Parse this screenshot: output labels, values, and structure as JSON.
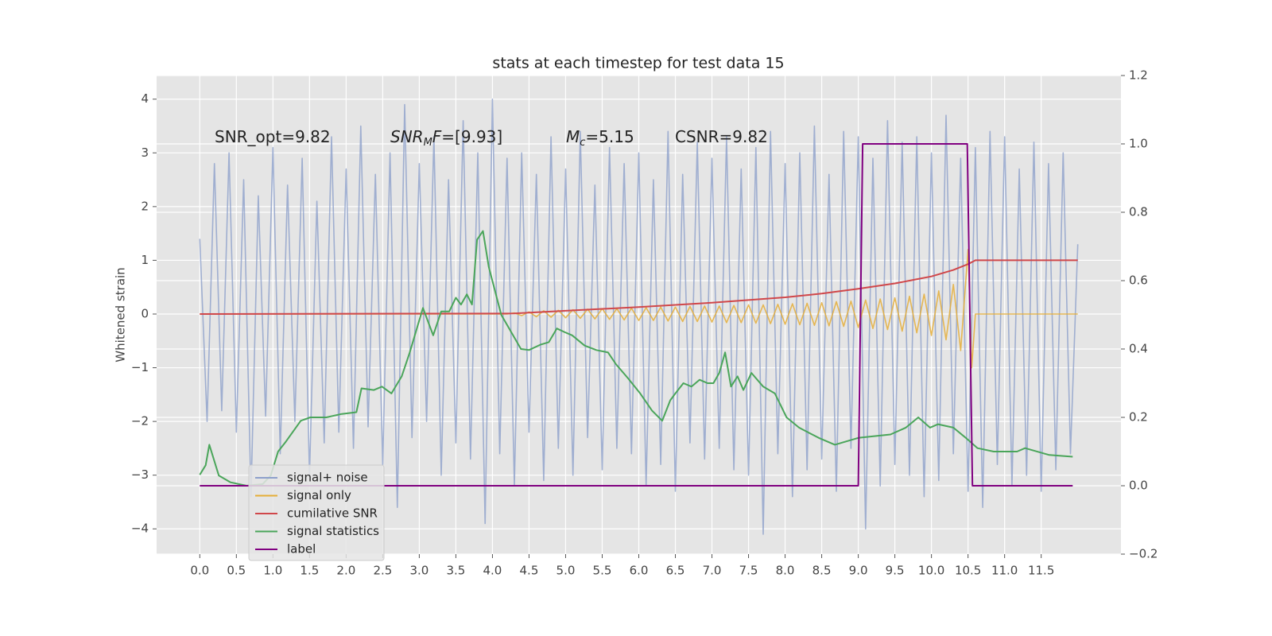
{
  "chart_data": {
    "type": "line",
    "title": "stats at each timestep for test data 15",
    "ylabel": "Whitened strain",
    "xlim": [
      -0.59,
      12.59
    ],
    "ylim": [
      -4.47,
      4.44
    ],
    "y2lim": [
      -0.2,
      1.2
    ],
    "xticks": [
      {
        "value": 0,
        "label": "0.0"
      },
      0.5,
      {
        "value": 1,
        "label": "1.0"
      },
      1.5,
      {
        "value": 2,
        "label": "2.0"
      },
      2.5,
      {
        "value": 3,
        "label": "3.0"
      },
      3.5,
      {
        "value": 4,
        "label": "4.0"
      },
      4.5,
      {
        "value": 5,
        "label": "5.0"
      },
      5.5,
      {
        "value": 6,
        "label": "6.0"
      },
      6.5,
      {
        "value": 7,
        "label": "7.0"
      },
      7.5,
      {
        "value": 8,
        "label": "8.0"
      },
      8.5,
      {
        "value": 9,
        "label": "9.0"
      },
      9.5,
      {
        "value": 10,
        "label": "10.0"
      },
      10.5,
      {
        "value": 11,
        "label": "11.0"
      },
      11.5
    ],
    "yticks": [
      {
        "value": -4,
        "label": "−4"
      },
      {
        "value": -3,
        "label": "−3"
      },
      {
        "value": -2,
        "label": "−2"
      },
      {
        "value": -1,
        "label": "−1"
      },
      0,
      1,
      2,
      3,
      4
    ],
    "y2ticks": [
      {
        "value": -0.2,
        "label": "−0.2"
      },
      {
        "value": 0,
        "label": "0.0"
      },
      0.2,
      0.4,
      0.6,
      0.8,
      {
        "value": 1,
        "label": "1.0"
      },
      1.2
    ],
    "grid": true,
    "legend_loc": "lower left",
    "annotations": [
      [
        {
          "text": "SNR_opt=9.82",
          "style": "normal"
        }
      ],
      [
        {
          "text": "SNR",
          "style": "italic"
        },
        {
          "text": "M",
          "style": "sub"
        },
        {
          "text": "F",
          "style": "italic"
        },
        {
          "text": "=[9.93]",
          "style": "normal"
        }
      ],
      [
        {
          "text": "M",
          "style": "italic"
        },
        {
          "text": "c",
          "style": "sub"
        },
        {
          "text": "=5.15",
          "style": "normal"
        }
      ],
      [
        {
          "text": "CSNR=9.82",
          "style": "normal"
        }
      ]
    ],
    "series": [
      {
        "name": "signal+ noise",
        "color": "#8da0cb",
        "axis": "y",
        "x": [
          0,
          0.1,
          0.2,
          0.3,
          0.4,
          0.5,
          0.6,
          0.7,
          0.8,
          0.9,
          1,
          1.1,
          1.2,
          1.3,
          1.4,
          1.5,
          1.6,
          1.7,
          1.8,
          1.9,
          2,
          2.1,
          2.2,
          2.3,
          2.4,
          2.5,
          2.6,
          2.7,
          2.8,
          2.9,
          3,
          3.1,
          3.2,
          3.3,
          3.4,
          3.5,
          3.6,
          3.7,
          3.8,
          3.9,
          4,
          4.1,
          4.2,
          4.3,
          4.4,
          4.5,
          4.6,
          4.7,
          4.8,
          4.9,
          5,
          5.1,
          5.2,
          5.3,
          5.4,
          5.5,
          5.6,
          5.7,
          5.8,
          5.9,
          6,
          6.1,
          6.2,
          6.3,
          6.4,
          6.5,
          6.6,
          6.7,
          6.8,
          6.9,
          7,
          7.1,
          7.2,
          7.3,
          7.4,
          7.5,
          7.6,
          7.7,
          7.8,
          7.9,
          8,
          8.1,
          8.2,
          8.3,
          8.4,
          8.5,
          8.6,
          8.7,
          8.8,
          8.9,
          9,
          9.1,
          9.2,
          9.3,
          9.4,
          9.5,
          9.6,
          9.7,
          9.8,
          9.9,
          10,
          10.1,
          10.2,
          10.3,
          10.4,
          10.5,
          10.6,
          10.7,
          10.8,
          10.9,
          11,
          11.1,
          11.2,
          11.3,
          11.4,
          11.5,
          11.6,
          11.7,
          11.8,
          11.9,
          12
        ],
        "values": [
          1.4,
          -2.0,
          2.8,
          -1.8,
          3.0,
          -2.2,
          2.5,
          -3.4,
          2.2,
          -1.9,
          3.1,
          -2.6,
          2.4,
          -2.0,
          2.9,
          -3.0,
          2.1,
          -2.4,
          3.3,
          -2.2,
          2.7,
          -2.5,
          3.5,
          -2.1,
          2.6,
          -2.8,
          3.0,
          -3.6,
          3.9,
          -2.3,
          2.8,
          -2.0,
          3.3,
          -3.0,
          2.5,
          -2.4,
          3.6,
          -2.7,
          3.0,
          -3.9,
          4.0,
          -2.6,
          2.9,
          -3.2,
          3.0,
          -2.2,
          2.6,
          -3.1,
          3.3,
          -2.5,
          2.7,
          -3.0,
          3.4,
          -2.3,
          2.4,
          -2.9,
          3.1,
          -2.5,
          2.8,
          -2.6,
          3.0,
          -3.2,
          2.5,
          -2.8,
          3.4,
          -3.3,
          2.6,
          -2.4,
          3.2,
          -2.7,
          2.9,
          -2.5,
          3.3,
          -2.9,
          2.7,
          -3.0,
          3.1,
          -4.1,
          3.4,
          -2.6,
          2.8,
          -3.4,
          3.0,
          -2.9,
          3.5,
          -2.7,
          2.6,
          -3.3,
          3.4,
          -2.5,
          3.3,
          -4.0,
          2.9,
          -3.2,
          3.6,
          -2.8,
          3.2,
          -3.0,
          3.3,
          -3.4,
          3.0,
          -3.1,
          3.7,
          -2.6,
          2.9,
          -3.3,
          3.1,
          -3.6,
          3.4,
          -2.8,
          3.3,
          -3.2,
          2.7,
          -3.0,
          3.2,
          -3.3,
          2.8,
          -2.9,
          3.0,
          -2.6,
          1.3
        ]
      },
      {
        "name": "signal only",
        "color": "#e5ae38",
        "axis": "y",
        "x": [
          0,
          4.2,
          4.3,
          4.4,
          4.5,
          4.6,
          4.7,
          4.8,
          4.9,
          5,
          5.1,
          5.2,
          5.3,
          5.4,
          5.5,
          5.6,
          5.7,
          5.8,
          5.9,
          6,
          6.1,
          6.2,
          6.3,
          6.4,
          6.5,
          6.6,
          6.7,
          6.8,
          6.9,
          7,
          7.1,
          7.2,
          7.3,
          7.4,
          7.5,
          7.6,
          7.7,
          7.8,
          7.9,
          8,
          8.1,
          8.2,
          8.3,
          8.4,
          8.5,
          8.6,
          8.7,
          8.8,
          8.9,
          9,
          9.1,
          9.2,
          9.3,
          9.4,
          9.5,
          9.6,
          9.7,
          9.8,
          9.9,
          10,
          10.1,
          10.2,
          10.3,
          10.4,
          10.5,
          10.55,
          10.6,
          12
        ],
        "values": [
          0,
          0,
          0.02,
          -0.03,
          0.04,
          -0.05,
          0.06,
          -0.06,
          0.07,
          -0.07,
          0.08,
          -0.08,
          0.09,
          -0.09,
          0.1,
          -0.1,
          0.1,
          -0.11,
          0.11,
          -0.12,
          0.12,
          -0.12,
          0.13,
          -0.13,
          0.13,
          -0.14,
          0.14,
          -0.14,
          0.15,
          -0.15,
          0.15,
          -0.16,
          0.16,
          -0.16,
          0.17,
          -0.17,
          0.17,
          -0.18,
          0.18,
          -0.19,
          0.19,
          -0.2,
          0.2,
          -0.21,
          0.21,
          -0.22,
          0.23,
          -0.23,
          0.24,
          -0.25,
          0.26,
          -0.27,
          0.28,
          -0.29,
          0.3,
          -0.32,
          0.33,
          -0.35,
          0.37,
          -0.4,
          0.43,
          -0.48,
          0.55,
          -0.68,
          1.2,
          -1.0,
          0,
          0
        ]
      },
      {
        "name": "cumilative SNR",
        "color": "#d0474a",
        "axis": "y",
        "x": [
          0,
          4.3,
          5,
          6,
          7,
          8,
          8.5,
          9,
          9.5,
          10,
          10.3,
          10.5,
          10.6,
          12
        ],
        "values": [
          0,
          0.01,
          0.06,
          0.13,
          0.21,
          0.31,
          0.38,
          0.47,
          0.57,
          0.7,
          0.82,
          0.93,
          1.0,
          1.0
        ]
      },
      {
        "name": "signal statistics",
        "color": "#4aa55a",
        "axis": "y2",
        "x": [
          0,
          0.08,
          0.13,
          0.26,
          0.42,
          0.64,
          0.86,
          0.97,
          1.07,
          1.18,
          1.38,
          1.51,
          1.73,
          1.94,
          2.14,
          2.21,
          2.38,
          2.49,
          2.62,
          2.76,
          2.87,
          3.05,
          3.19,
          3.3,
          3.41,
          3.5,
          3.57,
          3.65,
          3.72,
          3.79,
          3.87,
          3.95,
          4.12,
          4.39,
          4.5,
          4.66,
          4.77,
          4.88,
          4.98,
          5.09,
          5.26,
          5.42,
          5.58,
          5.69,
          5.85,
          6.02,
          6.18,
          6.32,
          6.43,
          6.5,
          6.61,
          6.72,
          6.83,
          6.94,
          7.02,
          7.1,
          7.18,
          7.26,
          7.35,
          7.43,
          7.54,
          7.7,
          7.86,
          8.02,
          8.19,
          8.46,
          8.68,
          9.0,
          9.44,
          9.65,
          9.82,
          9.98,
          10.09,
          10.3,
          10.47,
          10.63,
          10.85,
          11.17,
          11.28,
          11.61,
          11.93
        ],
        "values": [
          0.032,
          0.06,
          0.12,
          0.03,
          0.01,
          0.0,
          0.005,
          0.03,
          0.1,
          0.13,
          0.19,
          0.2,
          0.2,
          0.21,
          0.215,
          0.285,
          0.28,
          0.29,
          0.27,
          0.32,
          0.39,
          0.52,
          0.44,
          0.51,
          0.51,
          0.55,
          0.53,
          0.56,
          0.53,
          0.72,
          0.745,
          0.64,
          0.5,
          0.4,
          0.397,
          0.413,
          0.42,
          0.46,
          0.45,
          0.44,
          0.41,
          0.397,
          0.39,
          0.355,
          0.315,
          0.27,
          0.22,
          0.19,
          0.25,
          0.27,
          0.3,
          0.29,
          0.31,
          0.3,
          0.3,
          0.33,
          0.39,
          0.29,
          0.32,
          0.28,
          0.33,
          0.29,
          0.27,
          0.2,
          0.17,
          0.14,
          0.12,
          0.14,
          0.15,
          0.17,
          0.2,
          0.17,
          0.18,
          0.17,
          0.14,
          0.11,
          0.1,
          0.1,
          0.11,
          0.09,
          0.085
        ]
      },
      {
        "name": "label",
        "color": "#800080",
        "axis": "y2",
        "x": [
          0,
          9.0,
          9.06,
          10.49,
          10.56,
          11.93
        ],
        "values": [
          0,
          0,
          1,
          1,
          0,
          0
        ]
      }
    ]
  }
}
